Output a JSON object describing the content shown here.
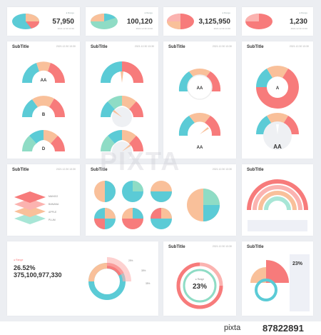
{
  "kpis": [
    {
      "value": "57,950",
      "legend": "● Range",
      "date": "2021.12.30 13:30"
    },
    {
      "value": "100,120",
      "legend": "● Range",
      "date": "2021.12.30 13:30"
    },
    {
      "value": "3,125,950",
      "legend": "● Range",
      "date": "2021.12.30 13:30"
    },
    {
      "value": "1,230",
      "legend": "● Range",
      "date": "2021.12.30 13:30"
    }
  ],
  "cards": {
    "subtitle": "SubTitle",
    "date": "2021.12.30 13:30"
  },
  "gauges": {
    "col1": [
      "AA",
      "B",
      "D"
    ],
    "col3": [
      "AA",
      "AA"
    ],
    "col4": [
      "A",
      "AA"
    ]
  },
  "stack_legend": [
    "MANGO",
    "BANANA",
    "APPLE",
    "PLUM"
  ],
  "summary": {
    "percent": "26.52%",
    "total": "375,100,977,330",
    "legend": "● Range"
  },
  "donut_percent": "23%",
  "side_percent": "23%",
  "donut_label": "● Range",
  "pct_labels": [
    "25%",
    "35%",
    "35%"
  ],
  "watermark": "PIXTA",
  "footer": {
    "brand": "pixta",
    "id": "87822891"
  },
  "colors": {
    "coral": "#f77b7b",
    "peach": "#f9c09a",
    "teal": "#5bcbd6",
    "mint": "#8fdcc5",
    "pink": "#fbb3b0"
  }
}
